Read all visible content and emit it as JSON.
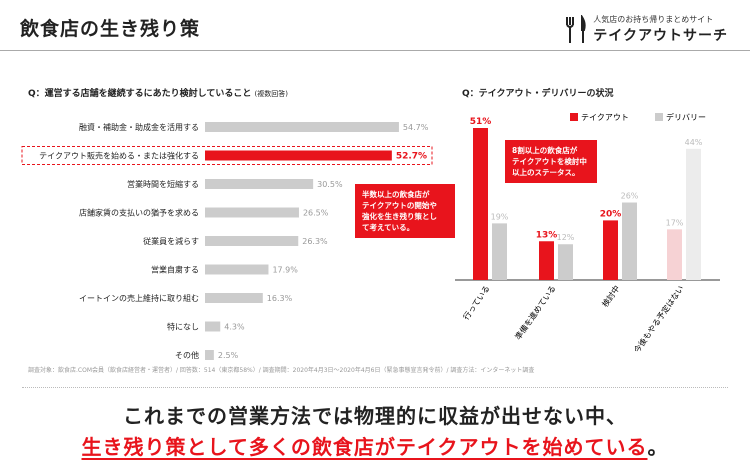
{
  "header": {
    "title": "飲食店の生き残り策",
    "brand_sub": "人気店のお持ち帰りまとめサイト",
    "brand_name": "テイクアウトサーチ"
  },
  "left_question": {
    "label": "Q：運営する店舗を継続するにあたり検討していること",
    "sub": "(複数回答)"
  },
  "right_question": {
    "label": "Q：テイクアウト・デリバリーの状況"
  },
  "callout_left": [
    "半数以上の飲食店が",
    "テイクアウトの開始や",
    "強化を生き残り策とし",
    "て考えている。"
  ],
  "callout_right": [
    "8割以上の飲食店が",
    "テイクアウトを検討中",
    "以上のステータス。"
  ],
  "note": "調査対象：飲食店.COM会員（飲食店経営者・運営者）/ 回答数：514（東京都58%）/ 調査期間：2020年4月3日〜2020年4月6日（緊急事態宣言発令前）/ 調査方法：インターネット調査",
  "caption_line1": "これまでの営業方法では物理的に収益が出せない中、",
  "caption_line2_red": "生き残り策として多くの飲食店がテイクアウトを始めている",
  "caption_line2_end": "。",
  "colors": {
    "red": "#e8141c",
    "gray": "#cccccc",
    "faded_red": "#f6d2d4",
    "faded_gray": "#ececec"
  },
  "chart_data": [
    {
      "type": "bar",
      "orientation": "horizontal",
      "categories": [
        "融資・補助金・助成金を活用する",
        "テイクアウト販売を始める・または強化する",
        "営業時間を短縮する",
        "店舗家賃の支払いの猶予を求める",
        "従業員を減らす",
        "営業自粛する",
        "イートインの売上維持に取り組む",
        "特になし",
        "その他"
      ],
      "values": [
        54.7,
        52.7,
        30.5,
        26.5,
        26.3,
        17.9,
        16.3,
        4.3,
        2.5
      ],
      "value_labels": [
        "54.7%",
        "52.7%",
        "30.5%",
        "26.5%",
        "26.3%",
        "17.9%",
        "16.3%",
        "4.3%",
        "2.5%"
      ],
      "highlight_index": 1,
      "xlim": [
        0,
        55
      ]
    },
    {
      "type": "bar",
      "categories": [
        "行っている",
        "準備を進めている",
        "検討中",
        "今後もやる予定はない"
      ],
      "series": [
        {
          "name": "テイクアウト",
          "values": [
            51,
            13,
            20,
            17
          ],
          "labels": [
            "51%",
            "13%",
            "20%",
            "17%"
          ]
        },
        {
          "name": "デリバリー",
          "values": [
            19,
            12,
            26,
            44
          ],
          "labels": [
            "19%",
            "12%",
            "26%",
            "44%"
          ]
        }
      ],
      "ylim": [
        0,
        51
      ],
      "legend": "top-right",
      "faded_index": 3
    }
  ]
}
